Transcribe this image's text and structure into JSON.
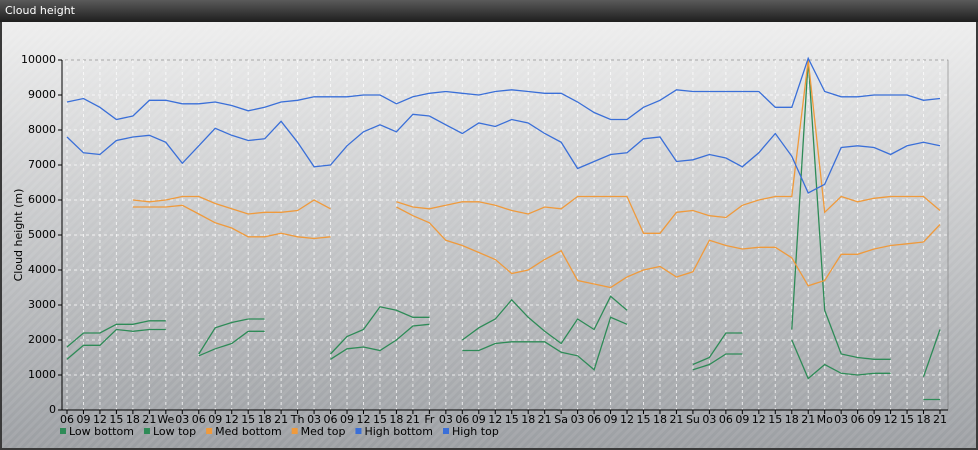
{
  "chart_data": {
    "type": "line",
    "title": "Cloud height",
    "y_label": "Cloud height (m)",
    "categories": [
      "06",
      "09",
      "12",
      "15",
      "18",
      "21",
      "We",
      "03",
      "06",
      "09",
      "12",
      "15",
      "18",
      "21",
      "Th",
      "03",
      "06",
      "09",
      "12",
      "15",
      "18",
      "21",
      "Fr",
      "03",
      "06",
      "09",
      "12",
      "15",
      "18",
      "21",
      "Sa",
      "03",
      "06",
      "09",
      "12",
      "15",
      "18",
      "21",
      "Su",
      "03",
      "06",
      "09",
      "12",
      "15",
      "18",
      "21",
      "Mo",
      "03",
      "06",
      "09",
      "12",
      "15",
      "18",
      "21"
    ],
    "ylim": [
      0,
      10000
    ],
    "yticks": [
      0,
      1000,
      2000,
      3000,
      4000,
      5000,
      6000,
      7000,
      8000,
      9000,
      10000
    ],
    "grid": true,
    "series": [
      {
        "name": "Low bottom",
        "color": "#2e8b57",
        "values": [
          1450,
          1850,
          1850,
          2300,
          2250,
          2300,
          2300,
          null,
          1550,
          1750,
          1900,
          2250,
          2250,
          null,
          null,
          null,
          1450,
          1750,
          1800,
          1700,
          2000,
          2400,
          2450,
          null,
          1700,
          1700,
          1900,
          1950,
          1950,
          1950,
          1650,
          1550,
          1150,
          2650,
          2450,
          null,
          null,
          null,
          1150,
          1300,
          1600,
          1600,
          null,
          null,
          2000,
          900,
          1300,
          1050,
          1000,
          1050,
          1050,
          null,
          300,
          300
        ]
      },
      {
        "name": "Low top",
        "color": "#2e8b57",
        "values": [
          1800,
          2200,
          2200,
          2450,
          2450,
          2550,
          2550,
          null,
          1600,
          2350,
          2500,
          2600,
          2600,
          null,
          null,
          null,
          1600,
          2100,
          2300,
          2950,
          2850,
          2650,
          2650,
          null,
          2000,
          2350,
          2600,
          3150,
          2650,
          2250,
          1900,
          2600,
          2300,
          3250,
          2850,
          null,
          null,
          null,
          1300,
          1500,
          2200,
          2200,
          null,
          null,
          2300,
          10000,
          2850,
          1600,
          1500,
          1450,
          1450,
          null,
          950,
          2300
        ]
      },
      {
        "name": "Med bottom",
        "color": "#ef9a3c",
        "values": [
          null,
          null,
          null,
          null,
          5800,
          5800,
          5800,
          5850,
          5600,
          5350,
          5200,
          4950,
          4950,
          5050,
          4950,
          4900,
          4950,
          null,
          null,
          null,
          5800,
          5550,
          5350,
          4850,
          4700,
          4500,
          4300,
          3900,
          4000,
          4300,
          4550,
          3700,
          3600,
          3500,
          3800,
          4000,
          4100,
          3800,
          3950,
          4850,
          4700,
          4600,
          4650,
          4650,
          4350,
          3550,
          3700,
          4450,
          4450,
          4600,
          4700,
          4750,
          4800,
          5300
        ]
      },
      {
        "name": "Med top",
        "color": "#ef9a3c",
        "values": [
          null,
          null,
          null,
          null,
          6000,
          5950,
          6000,
          6100,
          6100,
          5900,
          5750,
          5600,
          5650,
          5650,
          5700,
          6000,
          5750,
          null,
          null,
          null,
          5950,
          5800,
          5750,
          5850,
          5950,
          5950,
          5850,
          5700,
          5600,
          5800,
          5750,
          6100,
          6100,
          6100,
          6100,
          5050,
          5050,
          5650,
          5700,
          5550,
          5500,
          5850,
          6000,
          6100,
          6100,
          10000,
          5650,
          6100,
          5950,
          6050,
          6100,
          6100,
          6100,
          5700
        ]
      },
      {
        "name": "High bottom",
        "color": "#3a6fd8",
        "values": [
          7800,
          7350,
          7300,
          7700,
          7800,
          7850,
          7650,
          7050,
          7550,
          8050,
          7850,
          7700,
          7750,
          8250,
          7650,
          6950,
          7000,
          7550,
          7950,
          8150,
          7950,
          8450,
          8400,
          8150,
          7900,
          8200,
          8100,
          8300,
          8200,
          7900,
          7650,
          6900,
          7100,
          7300,
          7350,
          7750,
          7800,
          7100,
          7150,
          7300,
          7200,
          6950,
          7350,
          7900,
          7250,
          6200,
          6450,
          7500,
          7550,
          7500,
          7300,
          7550,
          7650,
          7550
        ]
      },
      {
        "name": "High top",
        "color": "#3a6fd8",
        "values": [
          8800,
          8900,
          8650,
          8300,
          8400,
          8850,
          8850,
          8750,
          8750,
          8800,
          8700,
          8550,
          8650,
          8800,
          8850,
          8950,
          8950,
          8950,
          9000,
          9000,
          8750,
          8950,
          9050,
          9100,
          9050,
          9000,
          9100,
          9150,
          9100,
          9050,
          9050,
          8800,
          8500,
          8300,
          8300,
          8650,
          8850,
          9150,
          9100,
          9100,
          9100,
          9100,
          9100,
          8650,
          8650,
          10050,
          9100,
          8950,
          8950,
          9000,
          9000,
          9000,
          8850,
          8900
        ]
      }
    ]
  }
}
